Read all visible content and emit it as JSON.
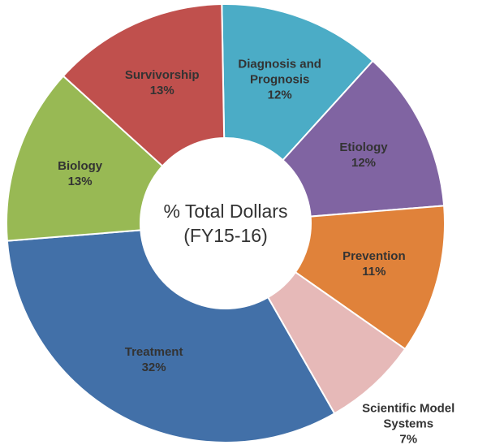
{
  "chart_data": {
    "type": "donut",
    "center_label": "% Total Dollars (FY15-16)",
    "categories": [
      "Diagnosis and Prognosis",
      "Etiology",
      "Prevention",
      "Scientific Model Systems",
      "Treatment",
      "Biology",
      "Survivorship"
    ],
    "values": [
      12,
      12,
      11,
      7,
      32,
      13,
      13
    ],
    "value_labels": [
      "12%",
      "12%",
      "11%",
      "7%",
      "32%",
      "13%",
      "13%"
    ],
    "colors": [
      "#4bacc6",
      "#8064a2",
      "#e0823a",
      "#e6b9b8",
      "#4270a8",
      "#98b954",
      "#c0504d"
    ]
  }
}
